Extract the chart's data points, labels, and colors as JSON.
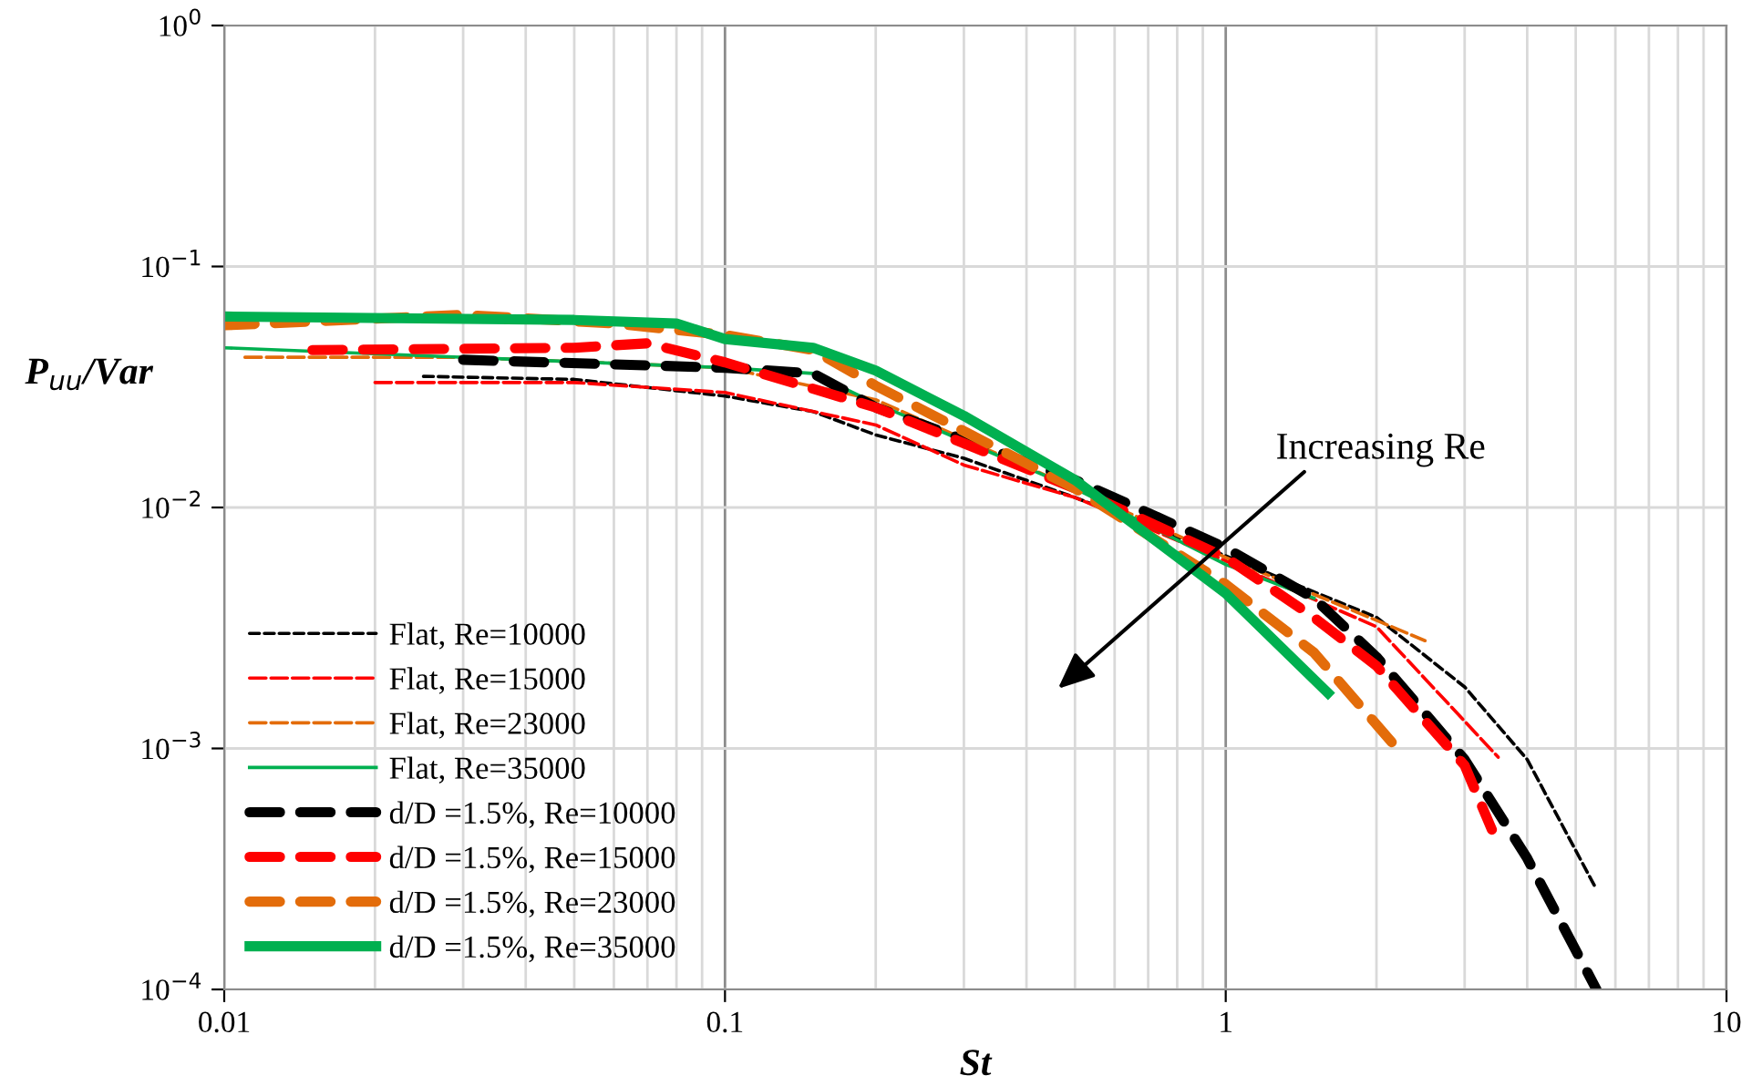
{
  "chart_data": {
    "type": "line",
    "xlabel": "St",
    "ylabel": "P$_{uu}$/Var",
    "log": "xy",
    "xlim": [
      0.01,
      10
    ],
    "xticks": [
      0.01,
      0.1,
      1,
      10
    ],
    "ylim": [
      0.0001,
      1
    ],
    "yticks": [
      {
        "value": 0.0001,
        "label": "10$^{−4}$"
      },
      {
        "value": 0.001,
        "label": "10$^{−3}$"
      },
      {
        "value": 0.01,
        "label": "10$^{−2}$"
      },
      {
        "value": 0.1,
        "label": "10$^{−1}$"
      },
      {
        "value": 1,
        "label": "10$^{0}$"
      }
    ],
    "grid": true,
    "legend": "bottom left",
    "marker": "none",
    "annotations": [
      "Increasing Re"
    ],
    "series": [
      {
        "name": "Flat, Re=10000",
        "color": "#000000",
        "line_style": "dotted",
        "x": [
          0.025,
          0.05,
          0.1,
          0.15,
          0.2,
          0.3,
          0.5,
          1,
          2,
          3,
          4,
          5.5
        ],
        "values": [
          0.035,
          0.034,
          0.029,
          0.025,
          0.02,
          0.016,
          0.011,
          0.0063,
          0.0035,
          0.0018,
          0.0009,
          0.00026
        ]
      },
      {
        "name": "Flat, Re=15000",
        "color": "#ff0000",
        "line_style": "dashed",
        "x": [
          0.02,
          0.05,
          0.1,
          0.2,
          0.3,
          0.5,
          1,
          2,
          3.5
        ],
        "values": [
          0.033,
          0.033,
          0.03,
          0.022,
          0.015,
          0.011,
          0.006,
          0.0032,
          0.00092
        ]
      },
      {
        "name": "Flat, Re=23000",
        "color": "#e36c0a",
        "line_style": "dashed",
        "x": [
          0.011,
          0.03,
          0.1,
          0.2,
          0.5,
          1,
          2,
          2.5
        ],
        "values": [
          0.042,
          0.042,
          0.038,
          0.028,
          0.012,
          0.0062,
          0.0034,
          0.0028
        ]
      },
      {
        "name": "Flat, Re=35000",
        "color": "#00b050",
        "line_style": "solid",
        "x": [
          0.01,
          0.1,
          0.15,
          0.2,
          0.5,
          1,
          1.5
        ],
        "values": [
          0.046,
          0.038,
          0.036,
          0.027,
          0.012,
          0.0058,
          0.0042
        ]
      },
      {
        "name": "d/D =1.5%, Re=10000",
        "color": "#000000",
        "line_style": "dashed",
        "x": [
          0.03,
          0.1,
          0.15,
          0.2,
          0.5,
          1,
          1.5,
          2,
          3,
          4,
          5.5
        ],
        "values": [
          0.041,
          0.038,
          0.036,
          0.026,
          0.013,
          0.0068,
          0.0042,
          0.0024,
          0.0009,
          0.00035,
          0.0001
        ]
      },
      {
        "name": "d/D =1.5%, Re=15000",
        "color": "#ff0000",
        "line_style": "dashed",
        "x": [
          0.015,
          0.05,
          0.07,
          0.1,
          0.2,
          0.5,
          1,
          1.5,
          2,
          3,
          3.4
        ],
        "values": [
          0.045,
          0.046,
          0.048,
          0.04,
          0.026,
          0.012,
          0.0062,
          0.0035,
          0.0022,
          0.00085,
          0.00046
        ]
      },
      {
        "name": "d/D =1.5%, Re=23000",
        "color": "#e36c0a",
        "line_style": "dashed",
        "x": [
          0.01,
          0.03,
          0.06,
          0.1,
          0.15,
          0.2,
          0.5,
          1,
          1.5,
          2.2
        ],
        "values": [
          0.057,
          0.063,
          0.058,
          0.052,
          0.045,
          0.032,
          0.012,
          0.0048,
          0.0025,
          0.001
        ]
      },
      {
        "name": "d/D =1.5%, Re=35000",
        "color": "#00b050",
        "line_style": "solid",
        "x": [
          0.01,
          0.05,
          0.08,
          0.1,
          0.15,
          0.2,
          0.3,
          0.5,
          1,
          1.6
        ],
        "values": [
          0.062,
          0.06,
          0.058,
          0.05,
          0.046,
          0.037,
          0.024,
          0.013,
          0.0044,
          0.0017
        ]
      }
    ]
  }
}
